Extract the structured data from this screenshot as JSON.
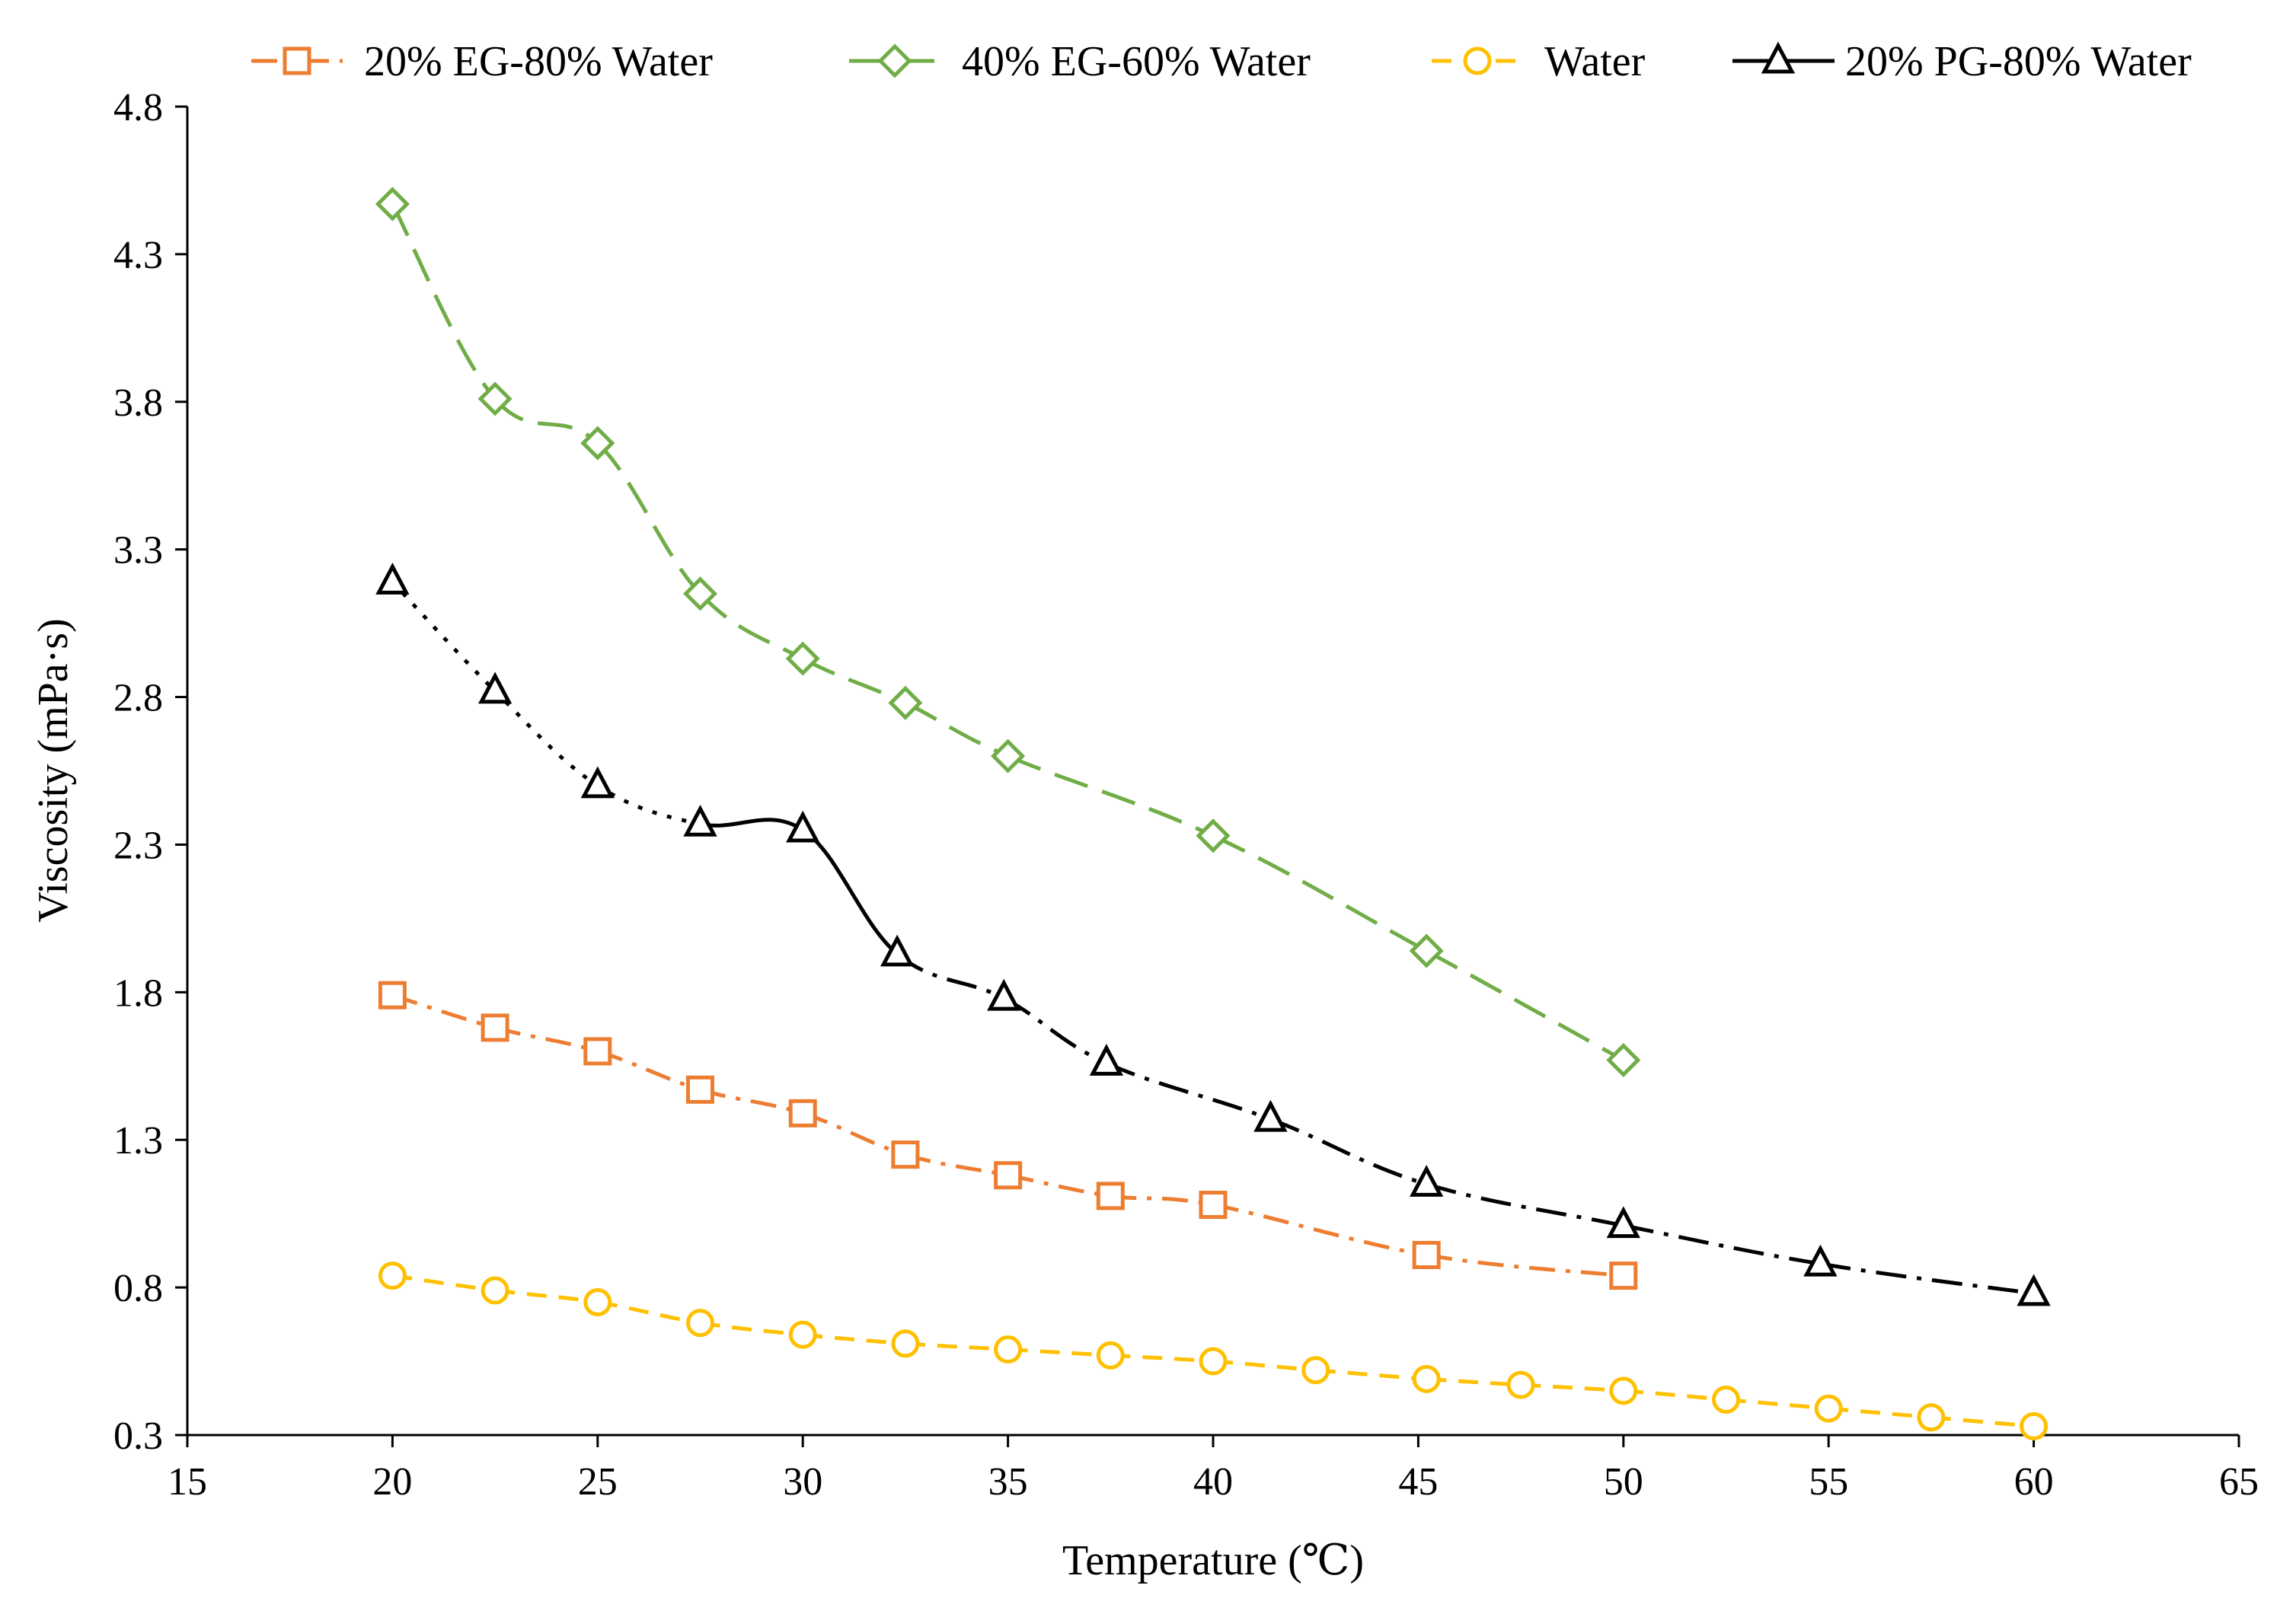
{
  "chart_data": {
    "type": "line",
    "title": "",
    "xlabel": "Temperature (℃)",
    "ylabel": "Viscosity (mPa·s)",
    "xlim": [
      15,
      65
    ],
    "ylim": [
      0.3,
      4.8
    ],
    "xticks": [
      15,
      20,
      25,
      30,
      35,
      40,
      45,
      50,
      55,
      60,
      65
    ],
    "yticks": [
      0.3,
      0.8,
      1.3,
      1.8,
      2.3,
      2.8,
      3.3,
      3.8,
      4.3,
      4.8
    ],
    "ytick_labels": [
      "0.3",
      "0.8",
      "1.3",
      "1.8",
      "2.3",
      "2.8",
      "3.3",
      "3.8",
      "4.3",
      "4.8"
    ],
    "grid": false,
    "legend_position": "top",
    "series": [
      {
        "name": "20% EG-80% Water",
        "color": "#ED7D31",
        "marker": "square",
        "dash": "dash-dot",
        "x": [
          20,
          22.5,
          25,
          27.5,
          30,
          32.5,
          35,
          37.5,
          40,
          45.2,
          50
        ],
        "y": [
          1.79,
          1.68,
          1.6,
          1.47,
          1.39,
          1.25,
          1.18,
          1.11,
          1.08,
          0.91,
          0.84
        ]
      },
      {
        "name": "40% EG-60% Water",
        "color": "#70AD47",
        "marker": "diamond",
        "dash": "long-dash",
        "x": [
          20,
          22.5,
          25,
          27.5,
          30,
          32.5,
          35,
          40,
          45.2,
          50
        ],
        "y": [
          4.47,
          3.81,
          3.66,
          3.15,
          2.93,
          2.78,
          2.6,
          2.33,
          1.94,
          1.57
        ]
      },
      {
        "name": "Water",
        "color": "#FFC000",
        "marker": "circle",
        "dash": "dash",
        "x": [
          20,
          22.5,
          25,
          27.5,
          30,
          32.5,
          35,
          37.5,
          40,
          42.5,
          45.2,
          47.5,
          50,
          52.5,
          55,
          57.5,
          60
        ],
        "y": [
          0.84,
          0.79,
          0.75,
          0.68,
          0.64,
          0.61,
          0.59,
          0.57,
          0.55,
          0.52,
          0.49,
          0.47,
          0.45,
          0.42,
          0.39,
          0.36,
          0.33
        ]
      },
      {
        "name": "20% PG-80% Water",
        "color": "#000000",
        "marker": "triangle",
        "dash": "dot-then-dash-dot",
        "x": [
          20,
          22.5,
          25,
          27.5,
          30,
          32.3,
          34.9,
          37.4,
          41.4,
          45.2,
          50,
          54.8,
          60
        ],
        "y": [
          3.19,
          2.82,
          2.5,
          2.37,
          2.35,
          1.93,
          1.78,
          1.56,
          1.37,
          1.15,
          1.01,
          0.88,
          0.78
        ]
      }
    ]
  }
}
